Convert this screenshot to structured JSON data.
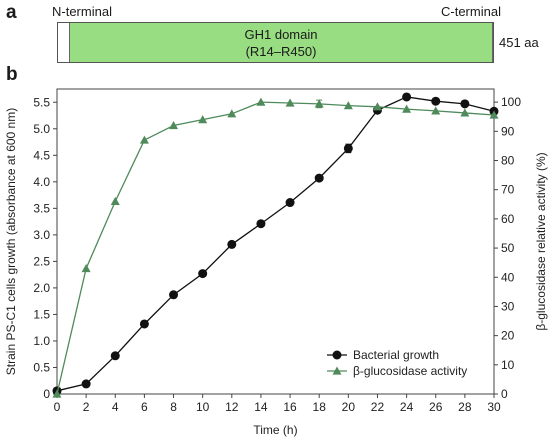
{
  "panel_a": {
    "label": "a",
    "n_terminal": "N-terminal",
    "c_terminal": "C-terminal",
    "domain_name": "GH1 domain",
    "domain_range": "(R14–R450)",
    "length": "451 aa",
    "domain_start": 14,
    "domain_end": 450,
    "protein_length": 451,
    "domain_color": "#99dd82"
  },
  "panel_b": {
    "label": "b"
  },
  "chart_data": {
    "type": "line",
    "title": "",
    "xlabel": "Time (h)",
    "ylabel": "Strain PS-C1 cells growth (absorbance at 600 nm)",
    "y2label": "β-glucosidase relative activity (%)",
    "xlim": [
      0,
      30
    ],
    "ylim": [
      0,
      5.75
    ],
    "y2lim": [
      0,
      104.5
    ],
    "x_ticks": [
      0,
      2,
      4,
      6,
      8,
      10,
      12,
      14,
      16,
      18,
      20,
      22,
      24,
      26,
      28,
      30
    ],
    "y_ticks": [
      0,
      0.5,
      1.0,
      1.5,
      2.0,
      2.5,
      3.0,
      3.5,
      4.0,
      4.5,
      5.0,
      5.5
    ],
    "y_tick_labels": [
      "0",
      "0.5",
      "1.0",
      "1.5",
      "2.0",
      "2.5",
      "3.0",
      "3.5",
      "4.0",
      "4.5",
      "5.0",
      "5.5"
    ],
    "y2_ticks": [
      0,
      10,
      20,
      30,
      40,
      50,
      60,
      70,
      80,
      90,
      100
    ],
    "legend_position": "bottom-right",
    "grid": false,
    "series": [
      {
        "name": "Bacterial growth",
        "axis": "left",
        "marker": "circle",
        "color": "#111111",
        "x": [
          0,
          2,
          4,
          6,
          8,
          10,
          12,
          14,
          16,
          18,
          20,
          22,
          24,
          26,
          28,
          30
        ],
        "y": [
          0.06,
          0.19,
          0.72,
          1.32,
          1.87,
          2.27,
          2.82,
          3.21,
          3.61,
          4.07,
          4.63,
          5.35,
          5.6,
          5.52,
          5.47,
          5.33
        ],
        "err": [
          0,
          0,
          0,
          0,
          0,
          0,
          0,
          0,
          0,
          0,
          0.08,
          0,
          0,
          0,
          0,
          0.04
        ]
      },
      {
        "name": "β-glucosidase activity",
        "axis": "right",
        "marker": "triangle",
        "color": "#4f8a5b",
        "x": [
          0,
          2,
          4,
          6,
          8,
          10,
          12,
          14,
          16,
          18,
          20,
          22,
          24,
          26,
          28,
          30
        ],
        "y": [
          0,
          43,
          66,
          87,
          92,
          94,
          96,
          100,
          99.7,
          99.4,
          98.8,
          98.4,
          97.6,
          97,
          96.3,
          95.6
        ],
        "err": [
          0,
          0,
          0,
          0,
          0,
          0,
          0,
          0,
          0,
          1.3,
          0,
          0,
          0,
          0,
          0,
          0
        ]
      }
    ]
  }
}
